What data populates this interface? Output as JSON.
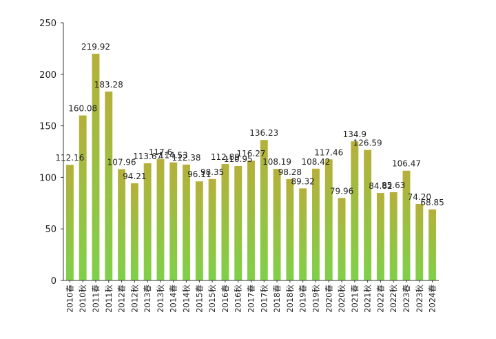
{
  "chart_data": {
    "type": "bar",
    "title": "",
    "xlabel": "",
    "ylabel": "",
    "ylim": [
      0,
      250
    ],
    "yticks": [
      0,
      50,
      100,
      150,
      200,
      250
    ],
    "grid": false,
    "legend": "none",
    "categories": [
      "2010春",
      "2010秋",
      "2011春",
      "2011秋",
      "2012春",
      "2012秋",
      "2013春",
      "2013秋",
      "2014春",
      "2014秋",
      "2015春",
      "2015秋",
      "2016春",
      "2016秋",
      "2017春",
      "2017秋",
      "2018春",
      "2018秋",
      "2019春",
      "2019秋",
      "2020春",
      "2020秋",
      "2021春",
      "2021秋",
      "2022春",
      "2022秋",
      "2023春",
      "2023秋",
      "2024春"
    ],
    "values": [
      112.16,
      160.08,
      219.92,
      183.28,
      107.96,
      94.21,
      113.67,
      117.6,
      114.53,
      112.38,
      96.11,
      98.35,
      112.89,
      110.95,
      116.27,
      136.23,
      108.19,
      98.28,
      89.32,
      108.42,
      117.46,
      79.96,
      134.9,
      126.59,
      84.82,
      85.63,
      106.47,
      74.2,
      68.85
    ],
    "data_labels": [
      "112.16",
      "160.08",
      "219.92",
      "183.28",
      "107.96",
      "94.21",
      "113.67",
      "117.6",
      "114.53",
      "112.38",
      "96.11",
      "98.35",
      "112.89",
      "110.95",
      "116.27",
      "136.23",
      "108.19",
      "98.28",
      "89.32",
      "108.42",
      "117.46",
      "79.96",
      "134.9",
      "126.59",
      "84.82",
      "85.63",
      "106.47",
      "74.20",
      "68.85"
    ],
    "colors": {
      "bar_top": "#b5b03a",
      "bar_bottom": "#7fd049",
      "axis": "#333333"
    }
  }
}
